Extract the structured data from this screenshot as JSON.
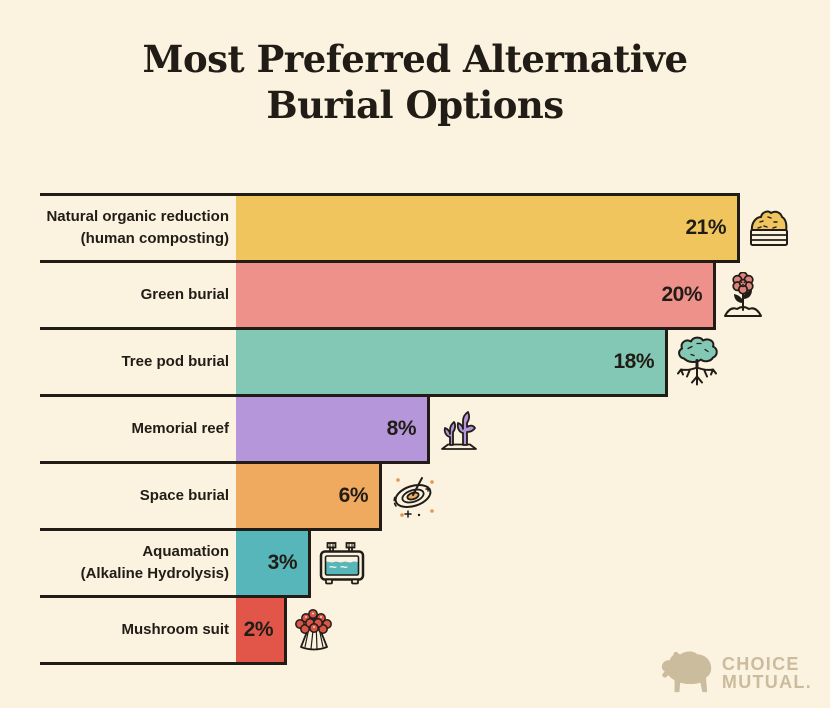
{
  "title": {
    "line1": "Most Preferred Alternative",
    "line2": "Burial Options"
  },
  "chart_data": {
    "type": "bar",
    "orientation": "horizontal",
    "title": "Most Preferred Alternative Burial Options",
    "categories": [
      "Natural organic reduction (human composting)",
      "Green burial",
      "Tree pod burial",
      "Memorial reef",
      "Space burial",
      "Aquamation (Alkaline Hydrolysis)",
      "Mushroom suit"
    ],
    "values": [
      21,
      20,
      18,
      8,
      6,
      3,
      2
    ],
    "unit": "%",
    "xlim": [
      0,
      21
    ],
    "grid": false,
    "legend": false,
    "value_label_position": "inside-end",
    "bar_colors": [
      "#F0C55E",
      "#EE918B",
      "#82C8B4",
      "#B596DA",
      "#F0AA60",
      "#57B6B9",
      "#E15649"
    ]
  },
  "rows": [
    {
      "label_line1": "Natural organic reduction",
      "label_line2": "(human composting)",
      "percent_value": 21,
      "value_label": "21%",
      "color": "#F0C55E",
      "icon": "compost-bin"
    },
    {
      "label_line1": "Green burial",
      "percent_value": 20,
      "value_label": "20%",
      "color": "#EE918B",
      "icon": "flower-sprout"
    },
    {
      "label_line1": "Tree pod burial",
      "percent_value": 18,
      "value_label": "18%",
      "color": "#82C8B4",
      "icon": "tree-with-roots"
    },
    {
      "label_line1": "Memorial reef",
      "percent_value": 8,
      "value_label": "8%",
      "color": "#B596DA",
      "icon": "coral"
    },
    {
      "label_line1": "Space burial",
      "percent_value": 6,
      "value_label": "6%",
      "color": "#F0AA60",
      "icon": "galaxy"
    },
    {
      "label_line1": "Aquamation",
      "label_line2": "(Alkaline Hydrolysis)",
      "percent_value": 3,
      "value_label": "3%",
      "color": "#57B6B9",
      "icon": "aquamation-tank"
    },
    {
      "label_line1": "Mushroom suit",
      "percent_value": 2,
      "value_label": "2%",
      "color": "#E15649",
      "icon": "mushroom-cluster"
    }
  ],
  "logo": {
    "brand_line1": "CHOICE",
    "brand_line2": "MUTUAL.",
    "color": "#CBBC9E",
    "icon": "bear"
  },
  "colors": {
    "background": "#FBF2E0",
    "line": "#211D16",
    "text": "#211D16"
  }
}
